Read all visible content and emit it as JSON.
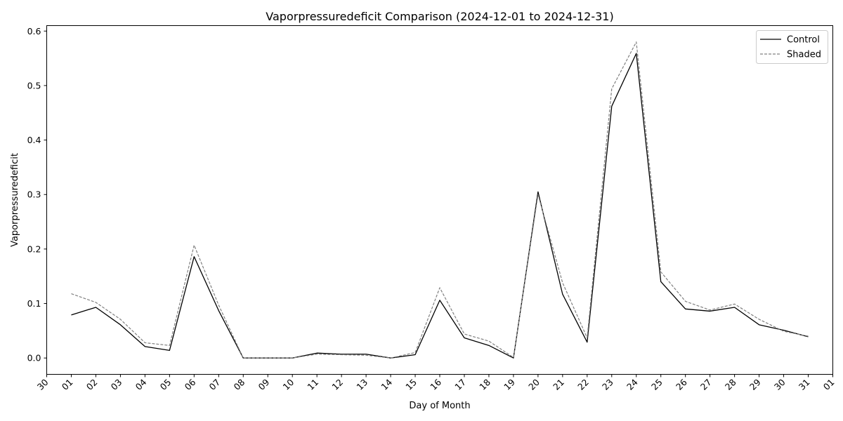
{
  "chart_data": {
    "type": "line",
    "title": "Vaporpressuredeficit Comparison (2024-12-01 to 2024-12-31)",
    "xlabel": "Day of Month",
    "ylabel": "Vaporpressuredeficit",
    "x_tick_labels": [
      "30",
      "01",
      "02",
      "03",
      "04",
      "05",
      "06",
      "07",
      "08",
      "09",
      "10",
      "11",
      "12",
      "13",
      "14",
      "15",
      "16",
      "17",
      "18",
      "19",
      "20",
      "21",
      "22",
      "23",
      "24",
      "25",
      "26",
      "27",
      "28",
      "29",
      "30",
      "31",
      "01"
    ],
    "x": [
      "2024-12-01",
      "2024-12-02",
      "2024-12-03",
      "2024-12-04",
      "2024-12-05",
      "2024-12-06",
      "2024-12-07",
      "2024-12-08",
      "2024-12-09",
      "2024-12-10",
      "2024-12-11",
      "2024-12-12",
      "2024-12-13",
      "2024-12-14",
      "2024-12-15",
      "2024-12-16",
      "2024-12-17",
      "2024-12-18",
      "2024-12-19",
      "2024-12-20",
      "2024-12-21",
      "2024-12-22",
      "2024-12-23",
      "2024-12-24",
      "2024-12-25",
      "2024-12-26",
      "2024-12-27",
      "2024-12-28",
      "2024-12-29",
      "2024-12-30",
      "2024-12-31"
    ],
    "xlim": [
      "2024-11-30",
      "2025-01-01"
    ],
    "ylim": [
      -0.03,
      0.61
    ],
    "y_ticks": [
      0.0,
      0.1,
      0.2,
      0.3,
      0.4,
      0.5,
      0.6
    ],
    "y_tick_labels": [
      "0.0",
      "0.1",
      "0.2",
      "0.3",
      "0.4",
      "0.5",
      "0.6"
    ],
    "grid": false,
    "legend_position": "top-right",
    "series": [
      {
        "name": "Control",
        "color": "#000000",
        "style": "solid",
        "values": [
          0.079,
          0.093,
          0.061,
          0.021,
          0.014,
          0.186,
          0.087,
          0.0,
          0.0,
          0.0,
          0.009,
          0.007,
          0.007,
          0.0,
          0.006,
          0.106,
          0.037,
          0.023,
          0.0,
          0.305,
          0.117,
          0.029,
          0.462,
          0.559,
          0.14,
          0.09,
          0.086,
          0.093,
          0.061,
          0.051,
          0.039
        ]
      },
      {
        "name": "Shaded",
        "color": "#808080",
        "style": "dashed",
        "values": [
          0.118,
          0.102,
          0.071,
          0.028,
          0.023,
          0.207,
          0.097,
          0.0,
          0.0,
          0.0,
          0.007,
          0.006,
          0.005,
          0.0,
          0.01,
          0.129,
          0.044,
          0.031,
          0.001,
          0.3,
          0.138,
          0.037,
          0.494,
          0.58,
          0.158,
          0.104,
          0.088,
          0.099,
          0.071,
          0.049,
          0.04
        ]
      }
    ]
  }
}
